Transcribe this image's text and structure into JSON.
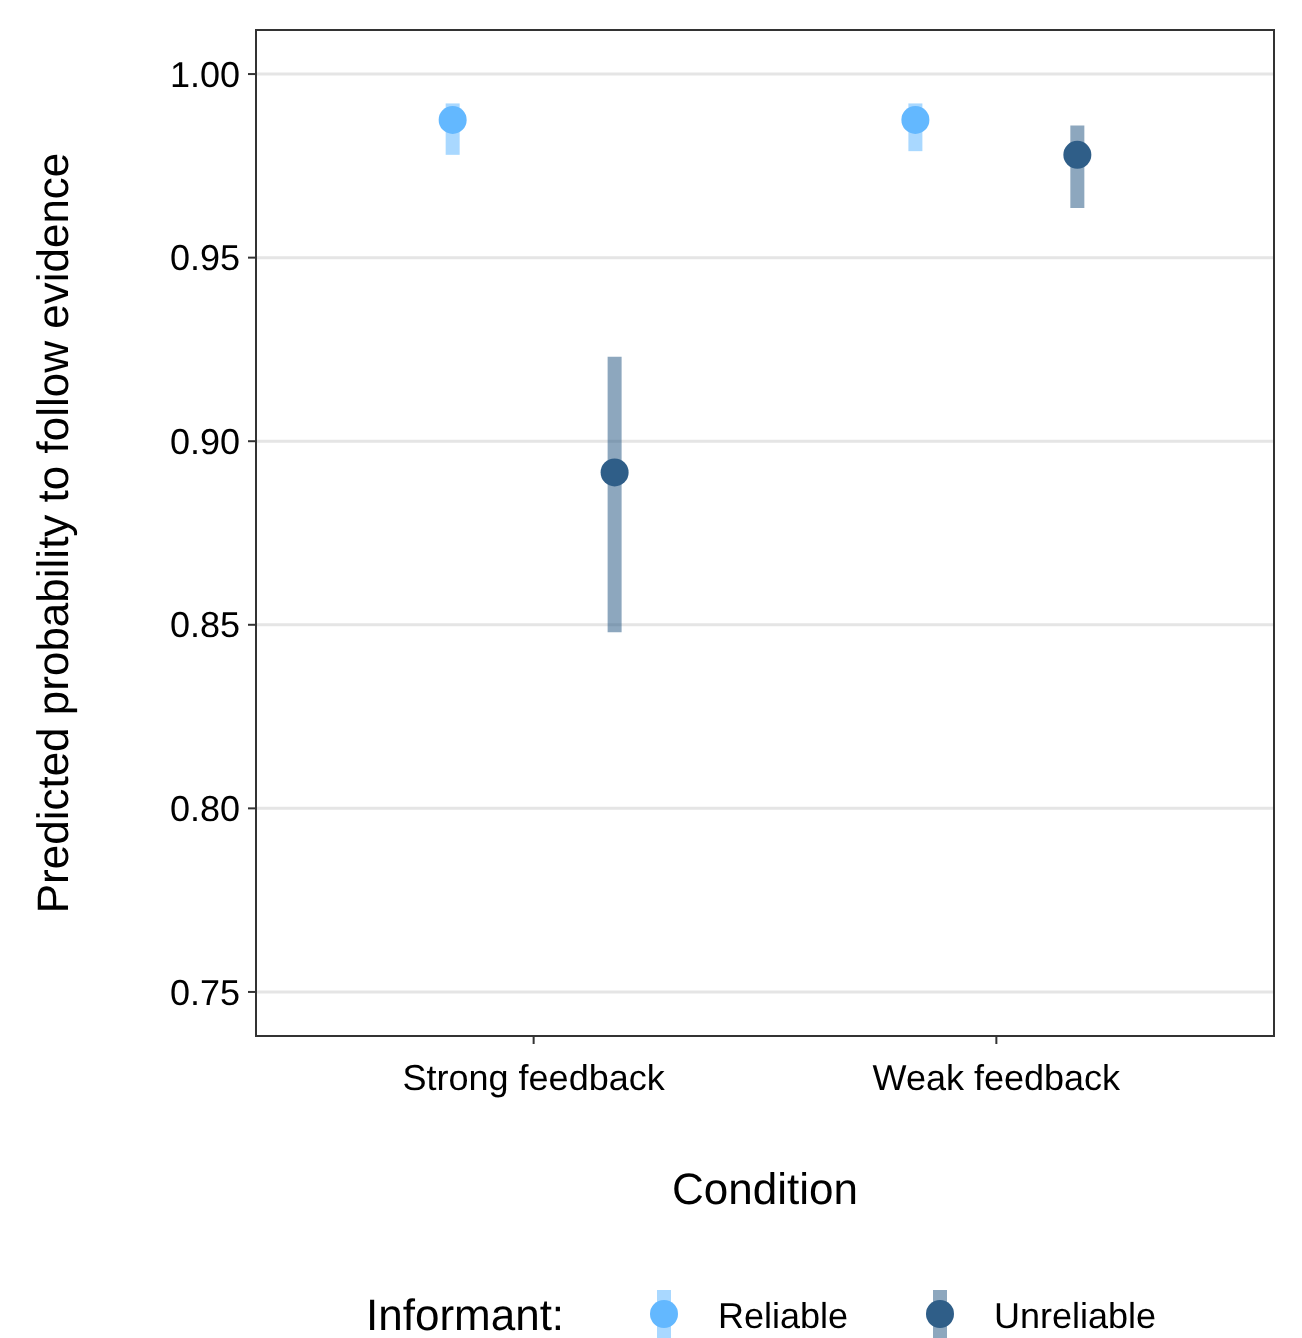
{
  "chart_data": {
    "type": "scatter",
    "xlabel": "Condition",
    "ylabel": "Predicted probability to follow evidence",
    "legend_title": "Informant:",
    "categories": [
      "Strong feedback",
      "Weak feedback"
    ],
    "series": [
      {
        "name": "Reliable",
        "color": "#63b8ff",
        "values": [
          0.9875,
          0.9875
        ],
        "errors": [
          [
            0.978,
            0.992
          ],
          [
            0.979,
            0.992
          ]
        ]
      },
      {
        "name": "Unreliable",
        "color": "#2f5e88",
        "values": [
          0.8915,
          0.978
        ],
        "errors": [
          [
            0.848,
            0.923
          ],
          [
            0.9635,
            0.986
          ]
        ]
      }
    ],
    "ylim": [
      0.738,
      1.012
    ],
    "yticks": [
      {
        "value": 0.75,
        "label": "0.75"
      },
      {
        "value": 0.8,
        "label": "0.80"
      },
      {
        "value": 0.85,
        "label": "0.85"
      },
      {
        "value": 0.9,
        "label": "0.90"
      },
      {
        "value": 0.95,
        "label": "0.95"
      },
      {
        "value": 1,
        "label": "1.00"
      }
    ],
    "grid": "y",
    "legend": "bottom",
    "marker": "circle"
  }
}
